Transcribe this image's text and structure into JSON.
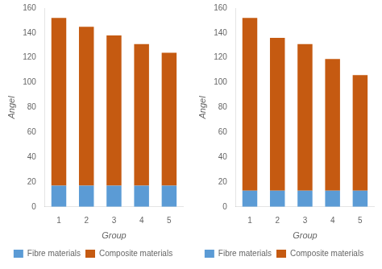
{
  "chart_data": [
    {
      "type": "bar",
      "stacked": true,
      "grid": false,
      "legend": "bottom",
      "xlabel": "Group",
      "ylabel": "Angel",
      "categories": [
        "1",
        "2",
        "3",
        "4",
        "5"
      ],
      "series": [
        {
          "name": "Fibre materials",
          "color": "#5b9bd5",
          "values": [
            17,
            17,
            17,
            17,
            17
          ]
        },
        {
          "name": "Composite materials",
          "color": "#c55a11",
          "values": [
            135,
            128,
            121,
            114,
            107
          ]
        }
      ],
      "ylim": [
        0,
        160
      ],
      "yticks": [
        0,
        20,
        40,
        60,
        80,
        100,
        120,
        140,
        160
      ]
    },
    {
      "type": "bar",
      "stacked": true,
      "grid": false,
      "legend": "bottom",
      "xlabel": "Group",
      "ylabel": "Angel",
      "categories": [
        "1",
        "2",
        "3",
        "4",
        "5"
      ],
      "series": [
        {
          "name": "Fibre materials",
          "color": "#5b9bd5",
          "values": [
            13,
            13,
            13,
            13,
            13
          ]
        },
        {
          "name": "Composite materials",
          "color": "#c55a11",
          "values": [
            139,
            123,
            118,
            106,
            93
          ]
        }
      ],
      "ylim": [
        0,
        160
      ],
      "yticks": [
        0,
        20,
        40,
        60,
        80,
        100,
        120,
        140,
        160
      ]
    }
  ]
}
